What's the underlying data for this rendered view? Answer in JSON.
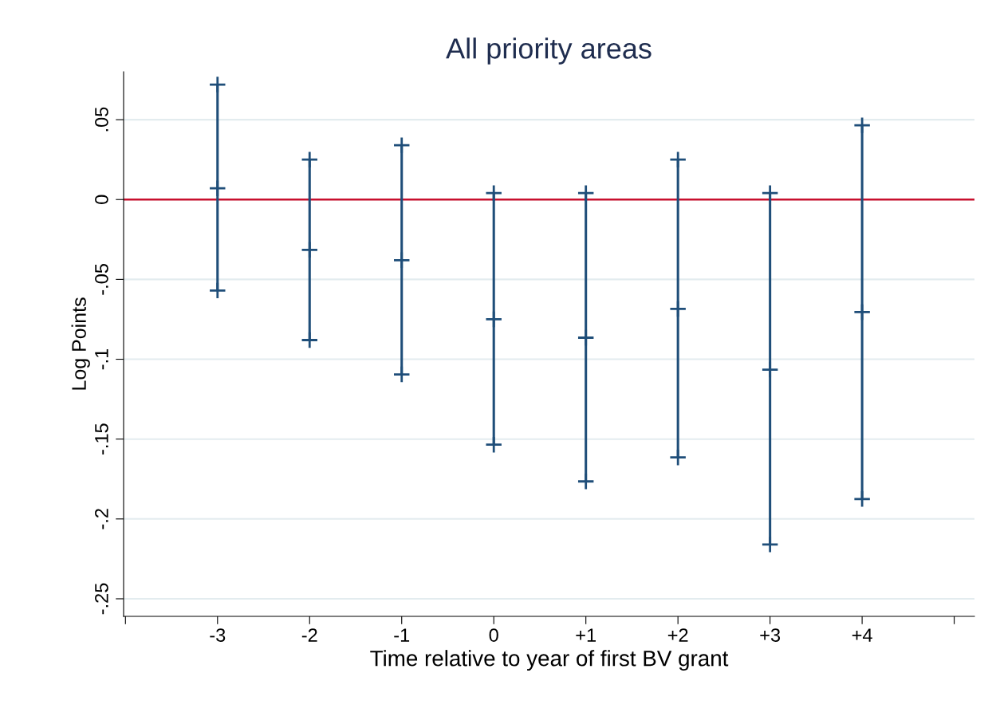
{
  "chart_data": {
    "type": "scatter",
    "title": "All priority areas",
    "xlabel": "Time relative to year of first BV grant",
    "ylabel": "Log Points",
    "x": [
      -3,
      -2,
      -1,
      0,
      1,
      2,
      3,
      4
    ],
    "series": [
      {
        "color": "#1f4e79",
        "values": [
          0.007,
          -0.0315,
          -0.038,
          -0.075,
          -0.0865,
          -0.0685,
          -0.1065,
          -0.0705
        ],
        "errors": [
          [
            -0.057,
            0.072
          ],
          [
            -0.088,
            0.025
          ],
          [
            -0.1095,
            0.034
          ],
          [
            -0.1535,
            0.004
          ],
          [
            -0.1765,
            0.004
          ],
          [
            -0.1615,
            0.025
          ],
          [
            -0.216,
            0.004
          ],
          [
            -0.1875,
            0.0465
          ]
        ]
      }
    ],
    "marker": "cross",
    "xlim": [
      -4.02,
      5.22
    ],
    "xticks": [
      {
        "value": -4,
        "label": null
      },
      -3,
      -2,
      -1,
      0,
      {
        "value": 1,
        "label": "+1"
      },
      {
        "value": 2,
        "label": "+2"
      },
      {
        "value": 3,
        "label": "+3"
      },
      {
        "value": 4,
        "label": "+4"
      },
      {
        "value": 5,
        "label": null
      }
    ],
    "ylim": [
      -0.261,
      0.08
    ],
    "yticks": [
      {
        "value": 0.05,
        "label": ".05"
      },
      0,
      {
        "value": -0.05,
        "label": "-.05"
      },
      {
        "value": -0.1,
        "label": "-.1"
      },
      {
        "value": -0.15,
        "label": "-.15"
      },
      {
        "value": -0.2,
        "label": "-.2"
      },
      {
        "value": -0.25,
        "label": "-.25"
      }
    ],
    "grid": "y",
    "ref_lines": [
      {
        "axis": "y",
        "value": 0,
        "color": "#c8102e"
      }
    ]
  }
}
